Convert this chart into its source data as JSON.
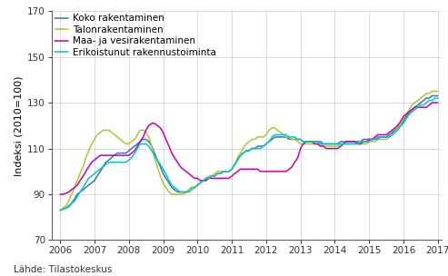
{
  "source_text": "Lähde: Tilastokeskus",
  "ylabel": "Indeksi (2010=100)",
  "ylim": [
    70,
    170
  ],
  "yticks": [
    70,
    90,
    110,
    130,
    150,
    170
  ],
  "xlim": [
    2005.75,
    2017.1
  ],
  "xticks": [
    2006,
    2007,
    2008,
    2009,
    2010,
    2011,
    2012,
    2013,
    2014,
    2015,
    2016,
    2017
  ],
  "legend": [
    {
      "label": "Koko rakentaminen",
      "color": "#3375b5"
    },
    {
      "label": "Talonrakentaminen",
      "color": "#b8c030"
    },
    {
      "label": "Maa- ja vesirakentaminen",
      "color": "#cc00aa"
    },
    {
      "label": "Erikoistunut rakennustoiminta",
      "color": "#00c8c8"
    }
  ],
  "series": {
    "koko": {
      "t": [
        2006.0,
        2006.08,
        2006.17,
        2006.25,
        2006.33,
        2006.42,
        2006.5,
        2006.58,
        2006.67,
        2006.75,
        2006.83,
        2006.92,
        2007.0,
        2007.08,
        2007.17,
        2007.25,
        2007.33,
        2007.42,
        2007.5,
        2007.58,
        2007.67,
        2007.75,
        2007.83,
        2007.92,
        2008.0,
        2008.08,
        2008.17,
        2008.25,
        2008.33,
        2008.42,
        2008.5,
        2008.58,
        2008.67,
        2008.75,
        2008.83,
        2008.92,
        2009.0,
        2009.08,
        2009.17,
        2009.25,
        2009.33,
        2009.42,
        2009.5,
        2009.58,
        2009.67,
        2009.75,
        2009.83,
        2009.92,
        2010.0,
        2010.08,
        2010.17,
        2010.25,
        2010.33,
        2010.42,
        2010.5,
        2010.58,
        2010.67,
        2010.75,
        2010.83,
        2010.92,
        2011.0,
        2011.08,
        2011.17,
        2011.25,
        2011.33,
        2011.42,
        2011.5,
        2011.58,
        2011.67,
        2011.75,
        2011.83,
        2011.92,
        2012.0,
        2012.08,
        2012.17,
        2012.25,
        2012.33,
        2012.42,
        2012.5,
        2012.58,
        2012.67,
        2012.75,
        2012.83,
        2012.92,
        2013.0,
        2013.08,
        2013.17,
        2013.25,
        2013.33,
        2013.42,
        2013.5,
        2013.58,
        2013.67,
        2013.75,
        2013.83,
        2013.92,
        2014.0,
        2014.08,
        2014.17,
        2014.25,
        2014.33,
        2014.42,
        2014.5,
        2014.58,
        2014.67,
        2014.75,
        2014.83,
        2014.92,
        2015.0,
        2015.08,
        2015.17,
        2015.25,
        2015.33,
        2015.42,
        2015.5,
        2015.58,
        2015.67,
        2015.75,
        2015.83,
        2015.92,
        2016.0,
        2016.08,
        2016.17,
        2016.25,
        2016.33,
        2016.42,
        2016.5,
        2016.58,
        2016.67,
        2016.75,
        2016.83,
        2016.92,
        2017.0
      ],
      "v": [
        83,
        83.5,
        84,
        84.5,
        86,
        88,
        90,
        91,
        92,
        93,
        94,
        95,
        96,
        98,
        100,
        102,
        104,
        105,
        106,
        107,
        108,
        108,
        108,
        108,
        109,
        110,
        111,
        112,
        113,
        114,
        114,
        113,
        111,
        108,
        105,
        102,
        99,
        97,
        95,
        93,
        92,
        91,
        91,
        91,
        91,
        92,
        93,
        93,
        94,
        95,
        96,
        97,
        97,
        98,
        98,
        99,
        99,
        100,
        100,
        100,
        101,
        103,
        105,
        107,
        108,
        109,
        109,
        110,
        110,
        111,
        111,
        111,
        112,
        113,
        114,
        115,
        115,
        115,
        115,
        115,
        114,
        114,
        114,
        114,
        114,
        113,
        113,
        113,
        113,
        113,
        113,
        113,
        112,
        112,
        112,
        112,
        112,
        112,
        113,
        113,
        113,
        113,
        113,
        113,
        113,
        113,
        114,
        114,
        114,
        114,
        114,
        115,
        115,
        115,
        115,
        116,
        117,
        118,
        119,
        120,
        122,
        124,
        126,
        127,
        128,
        129,
        130,
        131,
        132,
        132,
        133,
        133,
        133
      ]
    },
    "talo": {
      "t": [
        2006.0,
        2006.08,
        2006.17,
        2006.25,
        2006.33,
        2006.42,
        2006.5,
        2006.58,
        2006.67,
        2006.75,
        2006.83,
        2006.92,
        2007.0,
        2007.08,
        2007.17,
        2007.25,
        2007.33,
        2007.42,
        2007.5,
        2007.58,
        2007.67,
        2007.75,
        2007.83,
        2007.92,
        2008.0,
        2008.08,
        2008.17,
        2008.25,
        2008.33,
        2008.42,
        2008.5,
        2008.58,
        2008.67,
        2008.75,
        2008.83,
        2008.92,
        2009.0,
        2009.08,
        2009.17,
        2009.25,
        2009.33,
        2009.42,
        2009.5,
        2009.58,
        2009.67,
        2009.75,
        2009.83,
        2009.92,
        2010.0,
        2010.08,
        2010.17,
        2010.25,
        2010.33,
        2010.42,
        2010.5,
        2010.58,
        2010.67,
        2010.75,
        2010.83,
        2010.92,
        2011.0,
        2011.08,
        2011.17,
        2011.25,
        2011.33,
        2011.42,
        2011.5,
        2011.58,
        2011.67,
        2011.75,
        2011.83,
        2011.92,
        2012.0,
        2012.08,
        2012.17,
        2012.25,
        2012.33,
        2012.42,
        2012.5,
        2012.58,
        2012.67,
        2012.75,
        2012.83,
        2012.92,
        2013.0,
        2013.08,
        2013.17,
        2013.25,
        2013.33,
        2013.42,
        2013.5,
        2013.58,
        2013.67,
        2013.75,
        2013.83,
        2013.92,
        2014.0,
        2014.08,
        2014.17,
        2014.25,
        2014.33,
        2014.42,
        2014.5,
        2014.58,
        2014.67,
        2014.75,
        2014.83,
        2014.92,
        2015.0,
        2015.08,
        2015.17,
        2015.25,
        2015.33,
        2015.42,
        2015.5,
        2015.58,
        2015.67,
        2015.75,
        2015.83,
        2015.92,
        2016.0,
        2016.08,
        2016.17,
        2016.25,
        2016.33,
        2016.42,
        2016.5,
        2016.58,
        2016.67,
        2016.75,
        2016.83,
        2016.92,
        2017.0
      ],
      "v": [
        83,
        84,
        85,
        87,
        90,
        93,
        96,
        99,
        102,
        106,
        109,
        112,
        114,
        116,
        117,
        118,
        118,
        118,
        117,
        116,
        115,
        114,
        113,
        112,
        112,
        113,
        114,
        116,
        118,
        118,
        117,
        115,
        111,
        106,
        102,
        98,
        95,
        93,
        91,
        90,
        90,
        90,
        90,
        90,
        91,
        92,
        93,
        93,
        94,
        95,
        96,
        97,
        98,
        98,
        99,
        100,
        100,
        100,
        100,
        100,
        101,
        103,
        106,
        108,
        110,
        112,
        113,
        114,
        114,
        115,
        115,
        115,
        116,
        118,
        119,
        119,
        118,
        117,
        116,
        115,
        115,
        114,
        114,
        113,
        112,
        112,
        112,
        112,
        112,
        112,
        112,
        112,
        111,
        111,
        111,
        111,
        111,
        111,
        112,
        112,
        112,
        112,
        112,
        112,
        112,
        112,
        112,
        112,
        113,
        113,
        113,
        114,
        114,
        114,
        114,
        115,
        116,
        117,
        119,
        121,
        123,
        125,
        127,
        129,
        130,
        131,
        132,
        133,
        134,
        134,
        135,
        135,
        135
      ]
    },
    "maa": {
      "t": [
        2006.0,
        2006.08,
        2006.17,
        2006.25,
        2006.33,
        2006.42,
        2006.5,
        2006.58,
        2006.67,
        2006.75,
        2006.83,
        2006.92,
        2007.0,
        2007.08,
        2007.17,
        2007.25,
        2007.33,
        2007.42,
        2007.5,
        2007.58,
        2007.67,
        2007.75,
        2007.83,
        2007.92,
        2008.0,
        2008.08,
        2008.17,
        2008.25,
        2008.33,
        2008.42,
        2008.5,
        2008.58,
        2008.67,
        2008.75,
        2008.83,
        2008.92,
        2009.0,
        2009.08,
        2009.17,
        2009.25,
        2009.33,
        2009.42,
        2009.5,
        2009.58,
        2009.67,
        2009.75,
        2009.83,
        2009.92,
        2010.0,
        2010.08,
        2010.17,
        2010.25,
        2010.33,
        2010.42,
        2010.5,
        2010.58,
        2010.67,
        2010.75,
        2010.83,
        2010.92,
        2011.0,
        2011.08,
        2011.17,
        2011.25,
        2011.33,
        2011.42,
        2011.5,
        2011.58,
        2011.67,
        2011.75,
        2011.83,
        2011.92,
        2012.0,
        2012.08,
        2012.17,
        2012.25,
        2012.33,
        2012.42,
        2012.5,
        2012.58,
        2012.67,
        2012.75,
        2012.83,
        2012.92,
        2013.0,
        2013.08,
        2013.17,
        2013.25,
        2013.33,
        2013.42,
        2013.5,
        2013.58,
        2013.67,
        2013.75,
        2013.83,
        2013.92,
        2014.0,
        2014.08,
        2014.17,
        2014.25,
        2014.33,
        2014.42,
        2014.5,
        2014.58,
        2014.67,
        2014.75,
        2014.83,
        2014.92,
        2015.0,
        2015.08,
        2015.17,
        2015.25,
        2015.33,
        2015.42,
        2015.5,
        2015.58,
        2015.67,
        2015.75,
        2015.83,
        2015.92,
        2016.0,
        2016.08,
        2016.17,
        2016.25,
        2016.33,
        2016.42,
        2016.5,
        2016.58,
        2016.67,
        2016.75,
        2016.83,
        2016.92,
        2017.0
      ],
      "v": [
        90,
        90,
        90.5,
        91,
        92,
        93,
        94,
        96,
        98,
        100,
        102,
        104,
        105,
        106,
        107,
        107,
        107,
        107,
        107,
        107,
        107,
        107,
        107,
        107,
        107,
        108,
        109,
        111,
        113,
        115,
        118,
        120,
        121,
        121,
        120,
        119,
        117,
        114,
        111,
        108,
        106,
        104,
        102,
        101,
        100,
        99,
        98,
        97,
        97,
        96,
        96,
        96,
        97,
        97,
        97,
        97,
        97,
        97,
        97,
        97,
        98,
        99,
        100,
        101,
        101,
        101,
        101,
        101,
        101,
        101,
        100,
        100,
        100,
        100,
        100,
        100,
        100,
        100,
        100,
        100,
        101,
        102,
        104,
        106,
        110,
        112,
        113,
        113,
        113,
        112,
        112,
        111,
        111,
        110,
        110,
        110,
        110,
        110,
        111,
        112,
        113,
        113,
        113,
        113,
        112,
        112,
        113,
        113,
        114,
        114,
        115,
        116,
        116,
        116,
        116,
        117,
        118,
        119,
        120,
        122,
        124,
        125,
        126,
        127,
        128,
        128,
        128,
        128,
        128,
        129,
        130,
        130,
        130
      ]
    },
    "erikois": {
      "t": [
        2006.0,
        2006.08,
        2006.17,
        2006.25,
        2006.33,
        2006.42,
        2006.5,
        2006.58,
        2006.67,
        2006.75,
        2006.83,
        2006.92,
        2007.0,
        2007.08,
        2007.17,
        2007.25,
        2007.33,
        2007.42,
        2007.5,
        2007.58,
        2007.67,
        2007.75,
        2007.83,
        2007.92,
        2008.0,
        2008.08,
        2008.17,
        2008.25,
        2008.33,
        2008.42,
        2008.5,
        2008.58,
        2008.67,
        2008.75,
        2008.83,
        2008.92,
        2009.0,
        2009.08,
        2009.17,
        2009.25,
        2009.33,
        2009.42,
        2009.5,
        2009.58,
        2009.67,
        2009.75,
        2009.83,
        2009.92,
        2010.0,
        2010.08,
        2010.17,
        2010.25,
        2010.33,
        2010.42,
        2010.5,
        2010.58,
        2010.67,
        2010.75,
        2010.83,
        2010.92,
        2011.0,
        2011.08,
        2011.17,
        2011.25,
        2011.33,
        2011.42,
        2011.5,
        2011.58,
        2011.67,
        2011.75,
        2011.83,
        2011.92,
        2012.0,
        2012.08,
        2012.17,
        2012.25,
        2012.33,
        2012.42,
        2012.5,
        2012.58,
        2012.67,
        2012.75,
        2012.83,
        2012.92,
        2013.0,
        2013.08,
        2013.17,
        2013.25,
        2013.33,
        2013.42,
        2013.5,
        2013.58,
        2013.67,
        2013.75,
        2013.83,
        2013.92,
        2014.0,
        2014.08,
        2014.17,
        2014.25,
        2014.33,
        2014.42,
        2014.5,
        2014.58,
        2014.67,
        2014.75,
        2014.83,
        2014.92,
        2015.0,
        2015.08,
        2015.17,
        2015.25,
        2015.33,
        2015.42,
        2015.5,
        2015.58,
        2015.67,
        2015.75,
        2015.83,
        2015.92,
        2016.0,
        2016.08,
        2016.17,
        2016.25,
        2016.33,
        2016.42,
        2016.5,
        2016.58,
        2016.67,
        2016.75,
        2016.83,
        2016.92,
        2017.0
      ],
      "v": [
        83,
        83.5,
        84,
        85,
        86,
        87,
        89,
        91,
        93,
        95,
        97,
        98,
        99,
        100,
        101,
        102,
        103,
        104,
        104,
        104,
        104,
        104,
        104,
        104,
        105,
        106,
        108,
        110,
        112,
        112,
        112,
        111,
        109,
        107,
        105,
        103,
        101,
        99,
        96,
        94,
        93,
        92,
        91,
        91,
        91,
        91,
        92,
        93,
        94,
        95,
        96,
        97,
        97,
        98,
        98,
        99,
        99,
        100,
        100,
        100,
        101,
        103,
        105,
        107,
        108,
        109,
        109,
        110,
        110,
        110,
        110,
        111,
        112,
        113,
        115,
        116,
        116,
        116,
        116,
        116,
        115,
        115,
        115,
        114,
        114,
        113,
        113,
        113,
        113,
        113,
        113,
        112,
        112,
        112,
        112,
        112,
        112,
        112,
        112,
        112,
        112,
        112,
        112,
        112,
        112,
        113,
        113,
        113,
        113,
        114,
        114,
        114,
        115,
        115,
        115,
        115,
        116,
        117,
        118,
        120,
        121,
        123,
        125,
        126,
        127,
        128,
        129,
        129,
        130,
        131,
        131,
        132,
        132
      ]
    }
  },
  "background_color": "#ffffff",
  "grid_color": "#cccccc",
  "line_width": 1.1,
  "ylabel_fontsize": 8,
  "tick_fontsize": 7.5,
  "legend_fontsize": 7.5,
  "source_fontsize": 7.5
}
